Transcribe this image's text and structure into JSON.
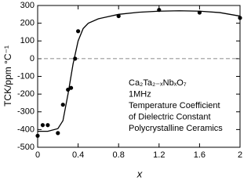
{
  "chart_data": {
    "type": "scatter",
    "xlabel": "x",
    "ylabel": "TCK/ppm °C⁻¹",
    "annotation": [
      "Ca₂Ta₂₋ₓNbₓO₇",
      "1MHz",
      "Temperature Coefficient",
      "of Dielectric Constant",
      "Polycrystalline Ceramics"
    ],
    "x": [
      0,
      0.05,
      0.1,
      0.2,
      0.25,
      0.3,
      0.33,
      0.37,
      0.4,
      0.8,
      1.2,
      1.6,
      2.0
    ],
    "values": [
      -435,
      -375,
      -375,
      -420,
      -260,
      -175,
      -165,
      0,
      155,
      240,
      275,
      260,
      230
    ],
    "fit": {
      "x": [
        0,
        0.1,
        0.2,
        0.25,
        0.3,
        0.35,
        0.4,
        0.45,
        0.5,
        0.6,
        0.8,
        1.0,
        1.2,
        1.4,
        1.6,
        1.8,
        2.0
      ],
      "values": [
        -410,
        -410,
        -395,
        -350,
        -200,
        -30,
        100,
        170,
        200,
        225,
        250,
        262,
        268,
        270,
        268,
        260,
        240
      ]
    },
    "hline": 0,
    "color": "#000000",
    "xlim": [
      0,
      2
    ],
    "xticks": [
      0,
      0.4,
      0.8,
      1.2,
      1.6,
      2
    ],
    "ylim": [
      -500,
      300
    ],
    "yticks": [
      300,
      200,
      100,
      0,
      -100,
      -200,
      -300,
      -400,
      -500
    ]
  }
}
